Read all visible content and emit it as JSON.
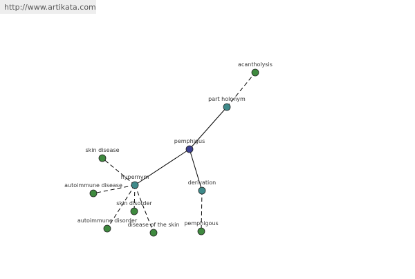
{
  "header": {
    "url": "http://www.artikata.com"
  },
  "nodes": [
    {
      "label": "pemphigus"
    },
    {
      "label": "part holonym"
    },
    {
      "label": "acantholysis"
    },
    {
      "label": "hypernym"
    },
    {
      "label": "skin disease"
    },
    {
      "label": "autoimmune disease"
    },
    {
      "label": "skin disorder"
    },
    {
      "label": "autoimmune disorder"
    },
    {
      "label": "disease of the skin"
    },
    {
      "label": "derivation"
    },
    {
      "label": "pemphigous"
    }
  ]
}
